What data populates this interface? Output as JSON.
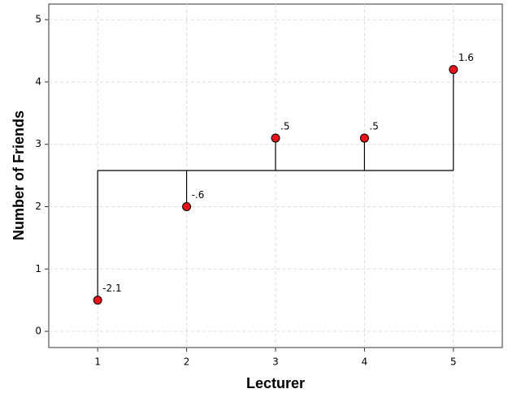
{
  "chart_data": {
    "type": "scatter",
    "x_label": "Lecturer",
    "y_label": "Number of Friends",
    "x": [
      1,
      2,
      3,
      4,
      5
    ],
    "series": [
      {
        "color": "#e8121a",
        "values": [
          0.5,
          2,
          3.1,
          3.1,
          4.2
        ]
      }
    ],
    "mean": 2.58,
    "deviations": {
      "values": [
        -2.1,
        -0.6,
        0.5,
        0.5,
        1.6
      ],
      "value_labels": [
        "-2.1",
        "-.6",
        ".5",
        ".5",
        "1.6"
      ]
    },
    "xlim": [
      0.45,
      5.55
    ],
    "ylim": [
      -0.26,
      5.25
    ],
    "xticks": [
      1,
      2,
      3,
      4,
      5
    ],
    "yticks": [
      0,
      1,
      2,
      3,
      4,
      5
    ],
    "grid": true
  }
}
